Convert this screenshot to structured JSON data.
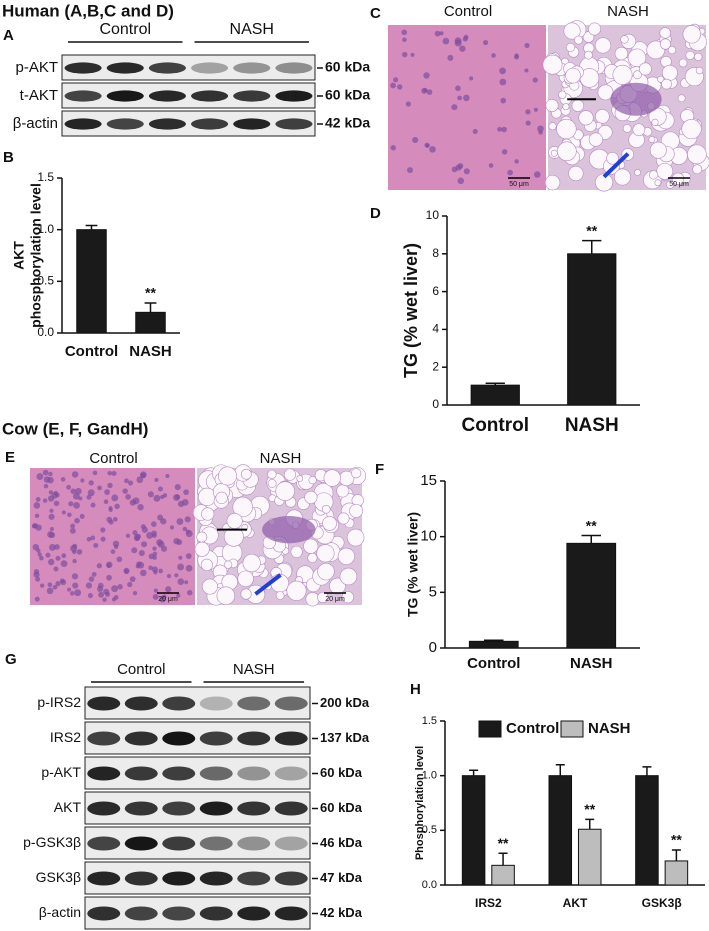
{
  "panels": {
    "human_header": "Human (A,B,C and D)",
    "cow_header": "Cow (E, F, GandH)",
    "letters": [
      "A",
      "B",
      "C",
      "D",
      "E",
      "F",
      "G",
      "H"
    ]
  },
  "blot_a": {
    "groups": [
      "Control",
      "NASH"
    ],
    "rows": [
      {
        "label": "p-AKT",
        "size": "60 kDa"
      },
      {
        "label": "t-AKT",
        "size": "60 kDa"
      },
      {
        "label": "β-actin",
        "size": "42 kDa"
      }
    ]
  },
  "histology_c": {
    "labels": [
      "Control",
      "NASH"
    ],
    "scale_bars": [
      "50 μm",
      "50 μm"
    ]
  },
  "histology_e": {
    "labels": [
      "Control",
      "NASH"
    ],
    "scale_bars": [
      "20 μm",
      "20 μm"
    ]
  },
  "blot_g": {
    "groups": [
      "Control",
      "NASH"
    ],
    "rows": [
      {
        "label": "p-IRS2",
        "size": "200 kDa"
      },
      {
        "label": "IRS2",
        "size": "137 kDa"
      },
      {
        "label": "p-AKT",
        "size": "60 kDa"
      },
      {
        "label": "AKT",
        "size": "60 kDa"
      },
      {
        "label": "p-GSK3β",
        "size": "46 kDa"
      },
      {
        "label": "GSK3β",
        "size": "47 kDa"
      },
      {
        "label": "β-actin",
        "size": "42 kDa"
      }
    ]
  },
  "chart_data": [
    {
      "type": "bar",
      "ylabel": [
        "AKT",
        "phosphorylation level"
      ],
      "categories": [
        "Control",
        "NASH"
      ],
      "values": [
        1.0,
        0.2
      ],
      "errors": [
        0.04,
        0.09
      ],
      "color": "#1a1a1a",
      "ylim": [
        0,
        1.5
      ],
      "yticks": [
        {
          "value": 0,
          "label": "0.0"
        },
        0.5,
        {
          "value": 1,
          "label": "1.0"
        },
        1.5
      ],
      "annotations": [
        {
          "text": "**",
          "category": "NASH"
        }
      ]
    },
    {
      "type": "bar",
      "ylabel": "TG (% wet liver)",
      "categories": [
        "Control",
        "NASH"
      ],
      "values": [
        1.05,
        8.0
      ],
      "errors": [
        0.1,
        0.7
      ],
      "color": "#1a1a1a",
      "ylim": [
        0,
        10
      ],
      "yticks": [
        0,
        2,
        4,
        6,
        8,
        10
      ],
      "annotations": [
        {
          "text": "**",
          "category": "NASH"
        }
      ]
    },
    {
      "type": "bar",
      "ylabel": "TG (% wet liver)",
      "categories": [
        "Control",
        "NASH"
      ],
      "values": [
        0.6,
        9.4
      ],
      "errors": [
        0.1,
        0.7
      ],
      "color": "#1a1a1a",
      "ylim": [
        0,
        15
      ],
      "yticks": [
        0,
        5,
        10,
        15
      ],
      "annotations": [
        {
          "text": "**",
          "category": "NASH"
        }
      ]
    },
    {
      "type": "bar",
      "ylabel": "Phosphorylation level",
      "categories": [
        "IRS2",
        "AKT",
        "GSK3β"
      ],
      "series": [
        {
          "name": "Control",
          "color": "#1a1a1a",
          "values": [
            1.0,
            1.0,
            1.0
          ],
          "errors": [
            0.05,
            0.1,
            0.08
          ]
        },
        {
          "name": "NASH",
          "color": "#bdbdbd",
          "values": [
            0.18,
            0.51,
            0.22
          ],
          "errors": [
            0.11,
            0.09,
            0.1
          ]
        }
      ],
      "ylim": [
        0,
        1.5
      ],
      "yticks": [
        {
          "value": 0,
          "label": "0.0"
        },
        0.5,
        {
          "value": 1,
          "label": "1.0"
        },
        1.5
      ],
      "annotations": [
        {
          "text": "**",
          "category": "IRS2",
          "series": "NASH"
        },
        {
          "text": "**",
          "category": "AKT",
          "series": "NASH"
        },
        {
          "text": "**",
          "category": "GSK3β",
          "series": "NASH"
        }
      ]
    }
  ]
}
